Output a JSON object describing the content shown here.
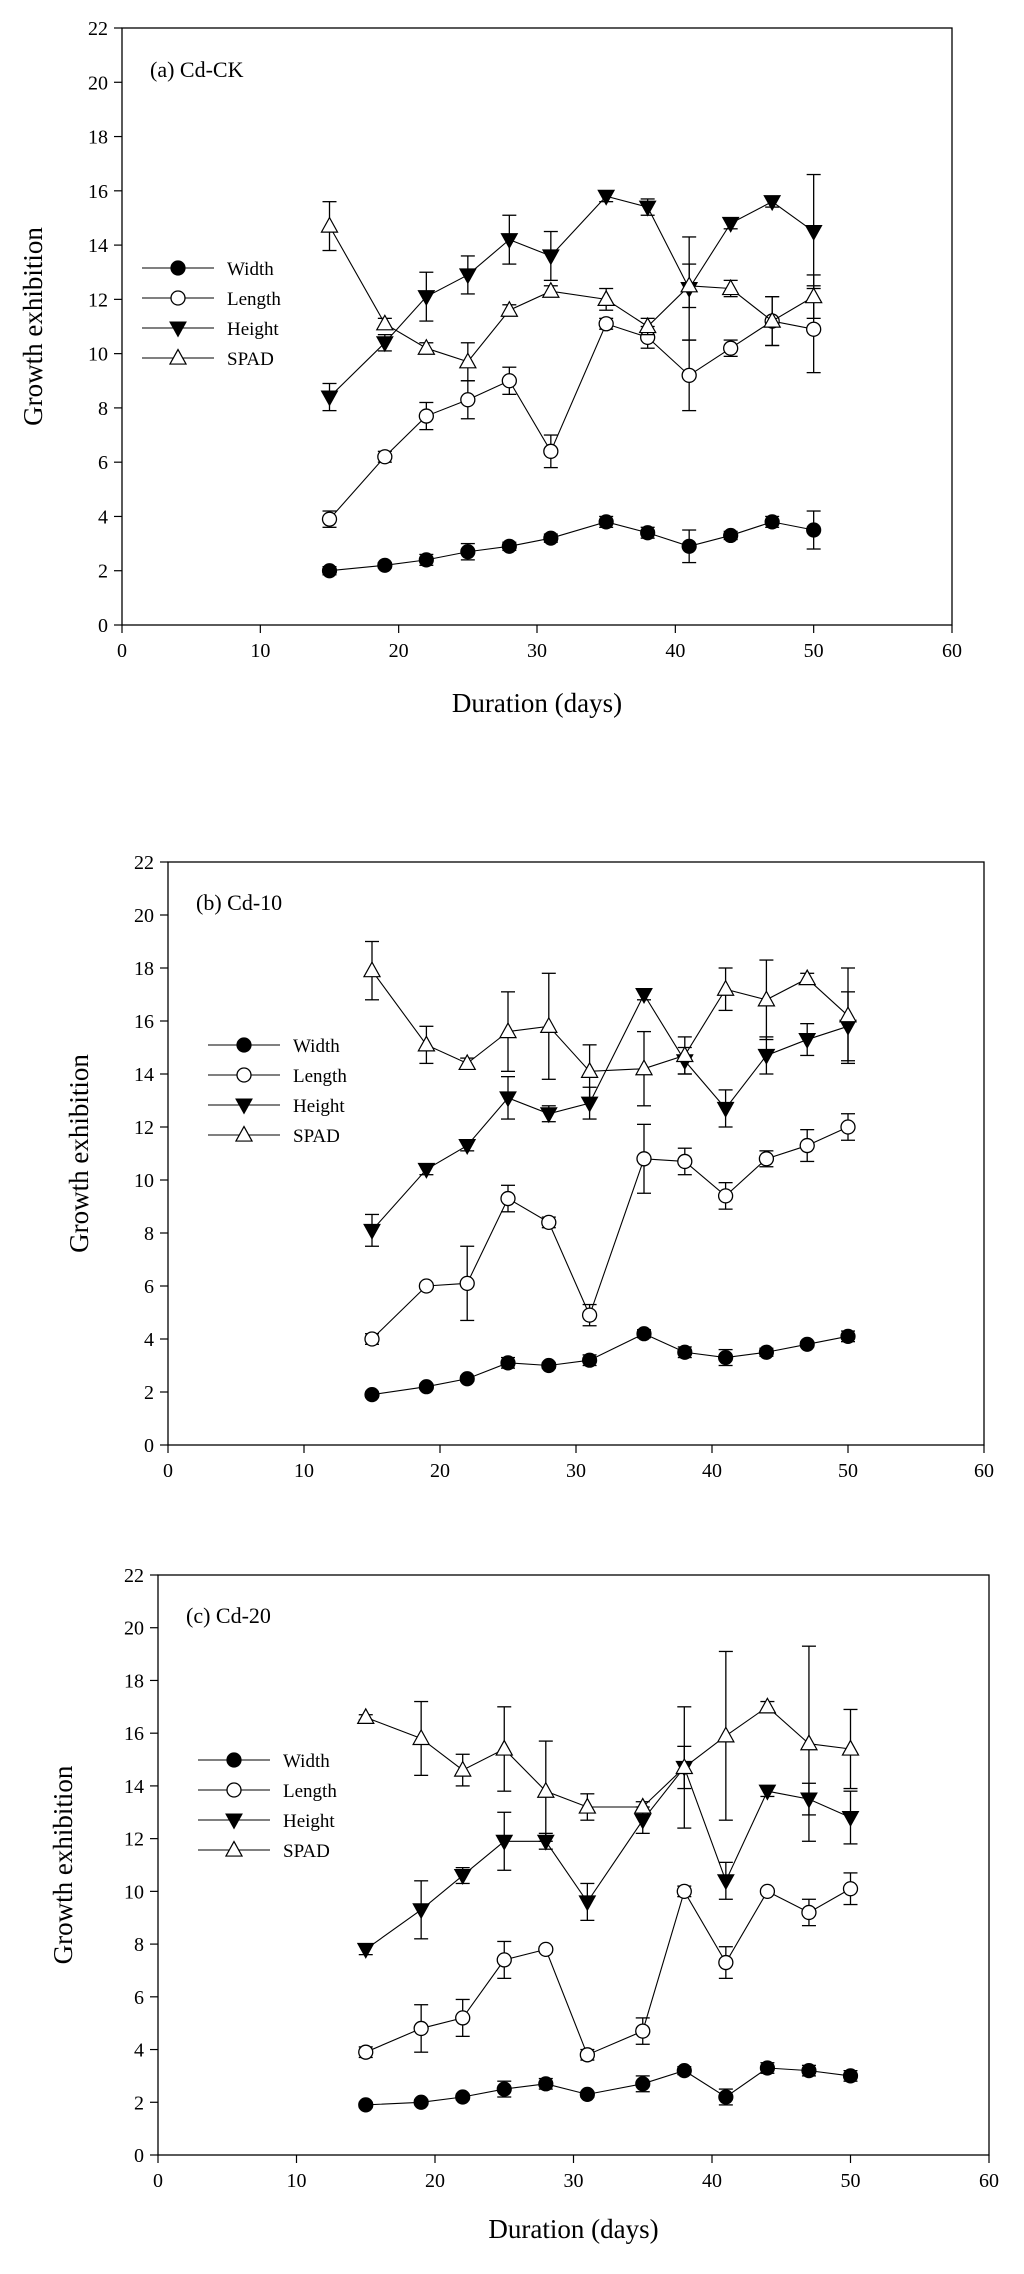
{
  "chart_data": [
    {
      "type": "line",
      "title": "(a) Cd-CK",
      "xlabel": "Duration (days)",
      "ylabel": "Growth exhibition",
      "xlim": [
        0,
        60
      ],
      "ylim": [
        0,
        22
      ],
      "xticks": [
        0,
        10,
        20,
        30,
        40,
        50,
        60
      ],
      "yticks": [
        0,
        2,
        4,
        6,
        8,
        10,
        12,
        14,
        16,
        18,
        20,
        22
      ],
      "legend_position": "left-middle",
      "x": [
        15,
        19,
        22,
        25,
        28,
        31,
        35,
        38,
        41,
        44,
        47,
        50
      ],
      "series": [
        {
          "name": "Width",
          "marker": "filled-circle",
          "values": [
            2.0,
            2.2,
            2.4,
            2.7,
            2.9,
            3.2,
            3.8,
            3.4,
            2.9,
            3.3,
            3.8,
            3.5
          ],
          "errors": [
            0.15,
            0.1,
            0.2,
            0.3,
            0.15,
            0.15,
            0.2,
            0.2,
            0.6,
            0.15,
            0.2,
            0.7
          ]
        },
        {
          "name": "Length",
          "marker": "open-circle",
          "values": [
            3.9,
            6.2,
            7.7,
            8.3,
            9.0,
            6.4,
            11.1,
            10.6,
            9.2,
            10.2,
            11.2,
            10.9
          ],
          "errors": [
            0.3,
            0.2,
            0.5,
            0.7,
            0.5,
            0.6,
            0.2,
            0.4,
            1.3,
            0.3,
            0.9,
            1.6
          ]
        },
        {
          "name": "Height",
          "marker": "filled-triangle-down",
          "values": [
            8.4,
            10.4,
            12.1,
            12.9,
            14.2,
            13.6,
            15.8,
            15.4,
            12.4,
            14.8,
            15.6,
            14.5
          ],
          "errors": [
            0.5,
            0.3,
            0.9,
            0.7,
            0.9,
            0.9,
            0.2,
            0.3,
            1.9,
            0.2,
            0.2,
            2.1
          ]
        },
        {
          "name": "SPAD",
          "marker": "open-triangle-up",
          "values": [
            14.7,
            11.1,
            10.2,
            9.7,
            11.6,
            12.3,
            12.0,
            11.0,
            12.5,
            12.4,
            11.2,
            12.1
          ],
          "errors": [
            0.9,
            0.2,
            0.2,
            0.7,
            0.2,
            0.2,
            0.4,
            0.3,
            0.8,
            0.3,
            0.9,
            0.8
          ]
        }
      ]
    },
    {
      "type": "line",
      "title": "(b) Cd-10",
      "xlabel": "",
      "ylabel": "Growth exhibition",
      "xlim": [
        0,
        60
      ],
      "ylim": [
        0,
        22
      ],
      "xticks": [
        0,
        10,
        20,
        30,
        40,
        50,
        60
      ],
      "yticks": [
        0,
        2,
        4,
        6,
        8,
        10,
        12,
        14,
        16,
        18,
        20,
        22
      ],
      "legend_position": "left-middle",
      "x": [
        15,
        19,
        22,
        25,
        28,
        31,
        35,
        38,
        41,
        44,
        47,
        50
      ],
      "series": [
        {
          "name": "Width",
          "marker": "filled-circle",
          "values": [
            1.9,
            2.2,
            2.5,
            3.1,
            3.0,
            3.2,
            4.2,
            3.5,
            3.3,
            3.5,
            3.8,
            4.1
          ],
          "errors": [
            0.1,
            0.1,
            0.1,
            0.2,
            0.1,
            0.2,
            0.15,
            0.2,
            0.3,
            0.15,
            0.1,
            0.2
          ]
        },
        {
          "name": "Length",
          "marker": "open-circle",
          "values": [
            4.0,
            6.0,
            6.1,
            9.3,
            8.4,
            4.9,
            10.8,
            10.7,
            9.4,
            10.8,
            11.3,
            12.0
          ],
          "errors": [
            0.2,
            0.1,
            1.4,
            0.5,
            0.2,
            0.4,
            1.3,
            0.5,
            0.5,
            0.3,
            0.6,
            0.5
          ]
        },
        {
          "name": "Height",
          "marker": "filled-triangle-down",
          "values": [
            8.1,
            10.4,
            11.3,
            13.1,
            12.5,
            12.9,
            17.0,
            14.5,
            12.7,
            14.7,
            15.3,
            15.8
          ],
          "errors": [
            0.6,
            0.2,
            0.2,
            0.8,
            0.3,
            0.6,
            0.2,
            0.5,
            0.7,
            0.7,
            0.6,
            1.3
          ]
        },
        {
          "name": "SPAD",
          "marker": "open-triangle-up",
          "values": [
            17.9,
            15.1,
            14.4,
            15.6,
            15.8,
            14.1,
            14.2,
            14.7,
            17.2,
            16.8,
            17.6,
            16.2
          ],
          "errors": [
            1.1,
            0.7,
            0.2,
            1.5,
            2.0,
            1.0,
            1.4,
            0.7,
            0.8,
            1.5,
            0.2,
            1.8
          ]
        }
      ]
    },
    {
      "type": "line",
      "title": "(c) Cd-20",
      "xlabel": "Duration (days)",
      "ylabel": "Growth exhibition",
      "xlim": [
        0,
        60
      ],
      "ylim": [
        0,
        22
      ],
      "xticks": [
        0,
        10,
        20,
        30,
        40,
        50,
        60
      ],
      "yticks": [
        0,
        2,
        4,
        6,
        8,
        10,
        12,
        14,
        16,
        18,
        20,
        22
      ],
      "legend_position": "left-middle",
      "x": [
        15,
        19,
        22,
        25,
        28,
        31,
        35,
        38,
        41,
        44,
        47,
        50
      ],
      "series": [
        {
          "name": "Width",
          "marker": "filled-circle",
          "values": [
            1.9,
            2.0,
            2.2,
            2.5,
            2.7,
            2.3,
            2.7,
            3.2,
            2.2,
            3.3,
            3.2,
            3.0
          ],
          "errors": [
            0.1,
            0.1,
            0.1,
            0.3,
            0.2,
            0.1,
            0.3,
            0.15,
            0.3,
            0.2,
            0.2,
            0.2
          ]
        },
        {
          "name": "Length",
          "marker": "open-circle",
          "values": [
            3.9,
            4.8,
            5.2,
            7.4,
            7.8,
            3.8,
            4.7,
            10.0,
            7.3,
            10.0,
            9.2,
            10.1
          ],
          "errors": [
            0.2,
            0.9,
            0.7,
            0.7,
            0.1,
            0.2,
            0.5,
            0.2,
            0.6,
            0.1,
            0.5,
            0.6
          ]
        },
        {
          "name": "Height",
          "marker": "filled-triangle-down",
          "values": [
            7.8,
            9.3,
            10.6,
            11.9,
            11.9,
            9.6,
            12.7,
            14.7,
            10.4,
            13.8,
            13.5,
            12.8
          ],
          "errors": [
            0.2,
            1.1,
            0.3,
            1.1,
            0.3,
            0.7,
            0.5,
            0.8,
            0.7,
            0.2,
            0.6,
            1.0
          ]
        },
        {
          "name": "SPAD",
          "marker": "open-triangle-up",
          "values": [
            16.6,
            15.8,
            14.6,
            15.4,
            13.8,
            13.2,
            13.2,
            14.7,
            15.9,
            17.0,
            15.6,
            15.4
          ],
          "errors": [
            0.1,
            1.4,
            0.6,
            1.6,
            1.9,
            0.5,
            0.2,
            2.3,
            3.2,
            0.2,
            3.7,
            1.5
          ]
        }
      ]
    }
  ]
}
